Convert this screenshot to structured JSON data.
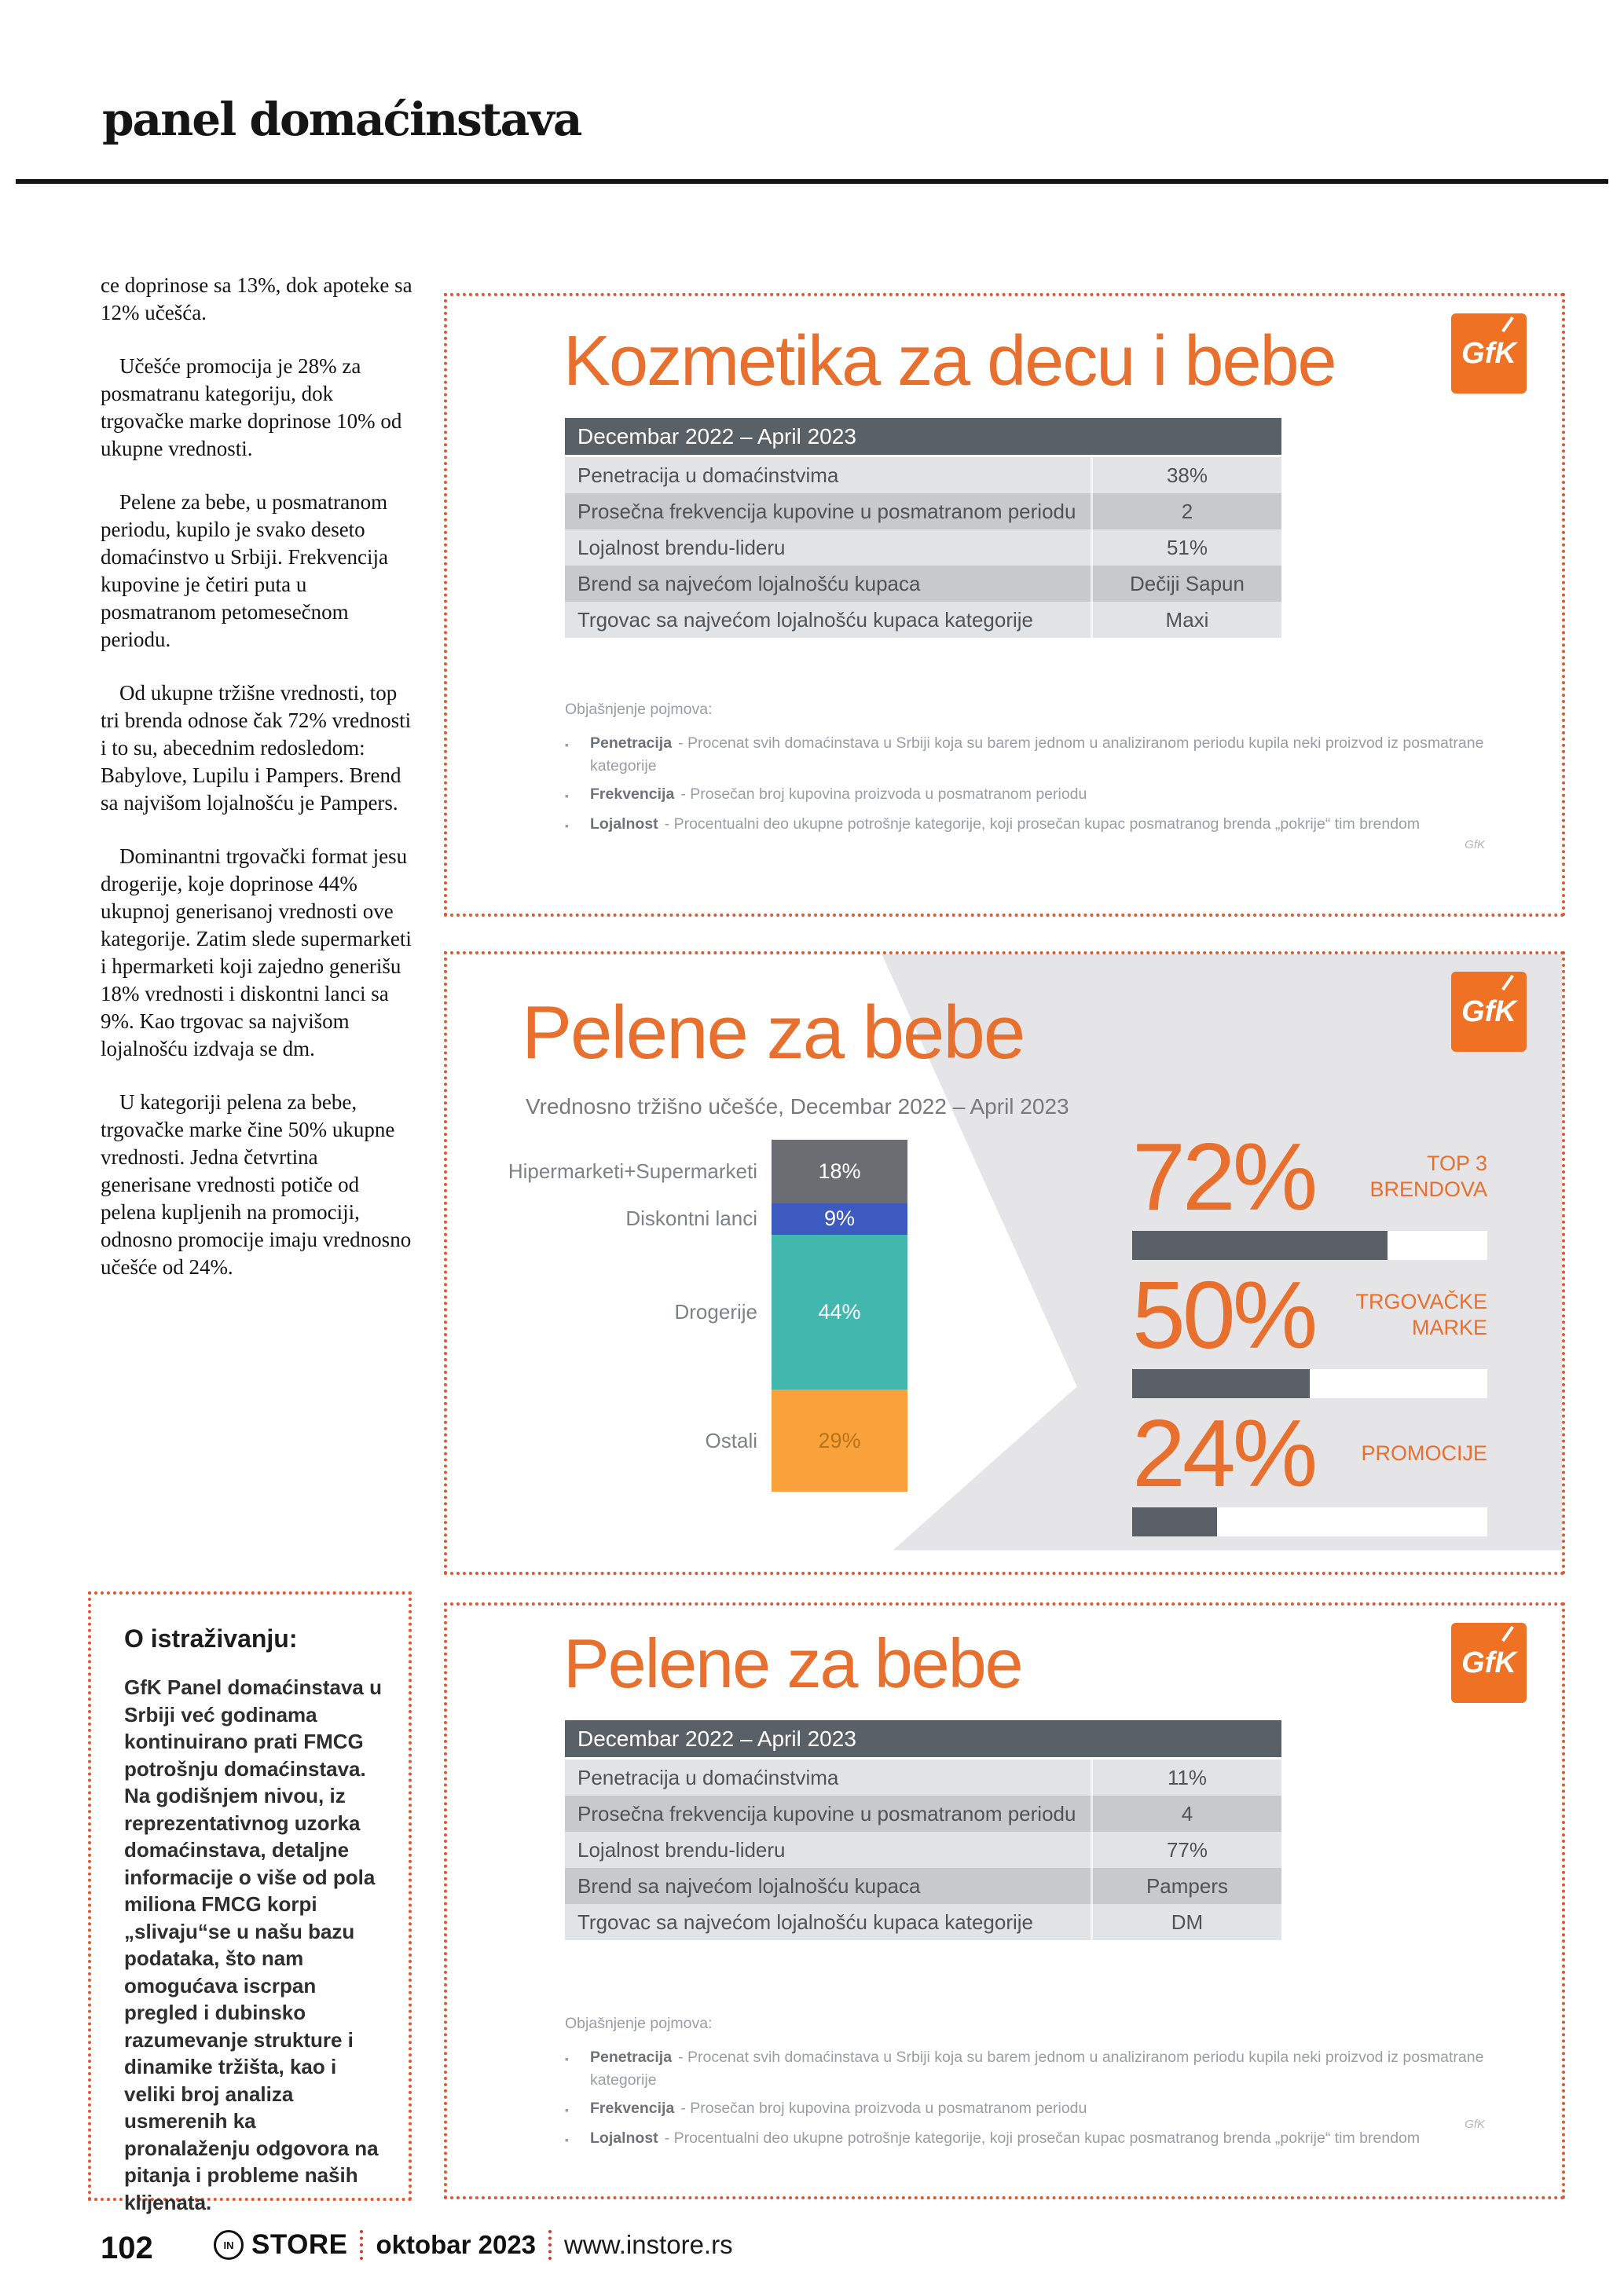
{
  "header": {
    "title": "panel domaćinstava"
  },
  "article": {
    "paragraphs": [
      "ce doprinose sa 13%, dok apoteke sa 12% učešća.",
      "Učešće promocija je 28% za posmatranu kategoriju, dok trgovačke marke doprinose 10% od ukupne vrednosti.",
      "Pelene za bebe, u posmatranom periodu, kupilo je svako deseto domaćinstvo u Srbiji. Frekvencija kupovine je četiri puta u posmatranom petomesečnom periodu.",
      "Od ukupne tržišne vrednosti, top tri brenda odnose čak 72% vrednosti i to su, abecednim redosledom: Babylove, Lupilu i Pampers. Brend sa najvišom lojalnošću je Pampers.",
      "Dominantni trgovački format jesu drogerije, koje doprinose 44% ukupnoj generisanoj vrednosti ove kategorije. Zatim slede supermarketi i hpermarketi koji zajedno generišu 18% vrednosti i diskontni lanci sa 9%. Kao trgovac sa najvišom lojalnošću izdvaja se dm.",
      "U kategoriji pelena za bebe, trgovačke marke čine 50% ukupne vrednosti. Jedna četvrtina generisane vrednosti potiče od pelena kupljenih na promociji, odnosno promocije imaju vrednosno učešće od 24%."
    ]
  },
  "about": {
    "title": "O istraživanju:",
    "body": "GfK Panel domaćinstava u Srbiji već godinama kontinuirano prati FMCG potrošnju domaćinstava. Na godišnjem nivou, iz reprezentativnog uzorka domaćinstava, detaljne informacije o više od pola miliona FMCG korpi „slivaju“se u našu bazu podataka, što nam omogućava iscrpan pregled i dubinsko razumevanje strukture i dinamike tržišta, kao i veliki broj analiza usmerenih ka pronalaženju odgovora na pitanja i probleme naših klijenata."
  },
  "logo": {
    "text": "GfK"
  },
  "box_kozmetika": {
    "title": "Kozmetika za decu i bebe",
    "table": {
      "header": "Decembar 2022 – April 2023",
      "rows": [
        {
          "label": "Penetracija u domaćinstvima",
          "value": "38%"
        },
        {
          "label": "Prosečna frekvencija kupovine u posmatranom periodu",
          "value": "2"
        },
        {
          "label": "Lojalnost brendu-lideru",
          "value": "51%"
        },
        {
          "label": "Brend sa najvećom lojalnošću kupaca",
          "value": "Dečiji Sapun"
        },
        {
          "label": "Trgovac sa najvećom lojalnošću kupaca kategorije",
          "value": "Maxi"
        }
      ]
    }
  },
  "box_pelene_table": {
    "title": "Pelene za bebe",
    "table": {
      "header": "Decembar 2022 – April 2023",
      "rows": [
        {
          "label": "Penetracija u domaćinstvima",
          "value": "11%"
        },
        {
          "label": "Prosečna frekvencija kupovine u posmatranom periodu",
          "value": "4"
        },
        {
          "label": "Lojalnost brendu-lideru",
          "value": "77%"
        },
        {
          "label": "Brend sa najvećom lojalnošću kupaca",
          "value": "Pampers"
        },
        {
          "label": "Trgovac sa najvećom lojalnošću kupaca kategorije",
          "value": "DM"
        }
      ]
    }
  },
  "glossary": {
    "heading": "Objašnjenje pojmova:",
    "items": [
      {
        "term": "Penetracija",
        "desc": "- Procenat svih domaćinstava u Srbiji koja su barem jednom u analiziranom periodu kupila neki proizvod iz posmatrane kategorije"
      },
      {
        "term": "Frekvencija",
        "desc": "- Prosečan broj kupovina proizvoda u posmatranom periodu"
      },
      {
        "term": "Lojalnost",
        "desc": "- Procentualni deo ukupne potrošnje kategorije, koji prosečan kupac posmatranog brenda „pokrije“ tim brendom"
      }
    ],
    "watermark": "GfK"
  },
  "chart_data": {
    "type": "bar",
    "stacked": true,
    "orientation": "vertical",
    "title": "Pelene za bebe",
    "subtitle": "Vrednosno tržišno učešće, Decembar 2022 – April 2023",
    "unit": "%",
    "ylim": [
      0,
      100
    ],
    "grid": false,
    "legend": "none",
    "segments": [
      {
        "label": "Hipermarketi+Supermarketi",
        "value": 18,
        "display": "18%",
        "color": "#6b6d72",
        "text_color": "#ffffff"
      },
      {
        "label": "Diskontni lanci",
        "value": 9,
        "display": "9%",
        "color": "#3d5ac0",
        "text_color": "#ffffff"
      },
      {
        "label": "Drogerije",
        "value": 44,
        "display": "44%",
        "color": "#41b7ae",
        "text_color": "#ffffff"
      },
      {
        "label": "Ostali",
        "value": 29,
        "display": "29%",
        "color": "#f9a23c",
        "text_color": "#b97317"
      }
    ],
    "kpis": [
      {
        "value": 72,
        "display": "72%",
        "label": "TOP 3 BRENDOVA"
      },
      {
        "value": 50,
        "display": "50%",
        "label": "TRGOVAČKE MARKE"
      },
      {
        "value": 24,
        "display": "24%",
        "label": "PROMOCIJE"
      }
    ]
  },
  "footer": {
    "page": "102",
    "logo_in": "IN",
    "logo_store": "STORE",
    "issue": "oktobar 2023",
    "site": "www.instore.rs"
  },
  "colors": {
    "accent_orange": "#e7702e",
    "logo_bg": "#ee7124",
    "dotted_border": "#e2552e",
    "table_header_bg": "#596066",
    "row_dark": "#c7c9cc",
    "row_light": "#e2e3e5",
    "panel_gray": "#e5e5e7",
    "kpi_fill": "#5b6066"
  }
}
